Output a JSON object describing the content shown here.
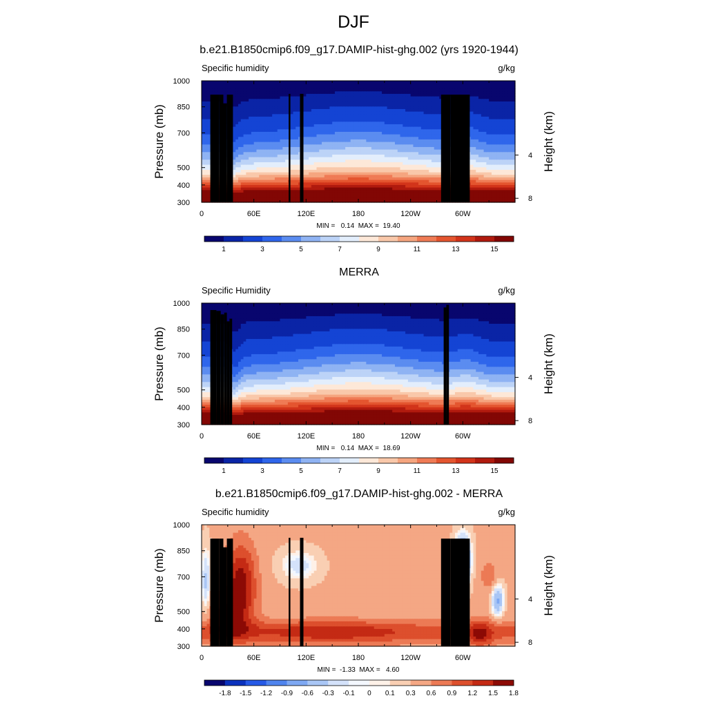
{
  "figure": {
    "title": "DJF"
  },
  "chart_data": [
    {
      "type": "heatmap",
      "title": "b.e21.B1850cmip6.f09_g17.DAMIP-hist-ghg.002 (yrs 1920-1944)",
      "left_label": "Specific humidity",
      "right_label": "g/kg",
      "ylabel": "Pressure (mb)",
      "ylabel_right": "Height (km)",
      "x_ticks": [
        "0",
        "60E",
        "120E",
        "180",
        "120W",
        "60W"
      ],
      "y_ticks": [
        "300",
        "400",
        "500",
        "700",
        "850",
        "1000"
      ],
      "y_right_ticks": [
        "8",
        "4"
      ],
      "stats": "MIN =   0.14  MAX =  19.40",
      "colorbar_labels": [
        "1",
        "3",
        "5",
        "7",
        "9",
        "11",
        "13",
        "15"
      ],
      "colorbar_levels": [
        0.5,
        1,
        2,
        3,
        4,
        5,
        6,
        7,
        8,
        9,
        10,
        11,
        12,
        13,
        14,
        15
      ],
      "min": 0.14,
      "max": 19.4,
      "xlim": [
        0,
        360
      ],
      "ylim": [
        1000,
        300
      ]
    },
    {
      "type": "heatmap",
      "title": "MERRA",
      "left_label": "Specific Humidity",
      "right_label": "g/kg",
      "ylabel": "Pressure (mb)",
      "ylabel_right": "Height (km)",
      "x_ticks": [
        "0",
        "60E",
        "120E",
        "180",
        "120W",
        "60W"
      ],
      "y_ticks": [
        "300",
        "400",
        "500",
        "700",
        "850",
        "1000"
      ],
      "y_right_ticks": [
        "8",
        "4"
      ],
      "stats": "MIN =   0.14  MAX =  18.69",
      "colorbar_labels": [
        "1",
        "3",
        "5",
        "7",
        "9",
        "11",
        "13",
        "15"
      ],
      "colorbar_levels": [
        0.5,
        1,
        2,
        3,
        4,
        5,
        6,
        7,
        8,
        9,
        10,
        11,
        12,
        13,
        14,
        15
      ],
      "min": 0.14,
      "max": 18.69,
      "xlim": [
        0,
        360
      ],
      "ylim": [
        1000,
        300
      ]
    },
    {
      "type": "heatmap",
      "title": "b.e21.B1850cmip6.f09_g17.DAMIP-hist-ghg.002 - MERRA",
      "left_label": "Specific humidity",
      "right_label": "g/kg",
      "ylabel": "Pressure (mb)",
      "ylabel_right": "Height (km)",
      "x_ticks": [
        "0",
        "60E",
        "120E",
        "180",
        "120W",
        "60W"
      ],
      "y_ticks": [
        "300",
        "400",
        "500",
        "700",
        "850",
        "1000"
      ],
      "y_right_ticks": [
        "8",
        "4"
      ],
      "stats": "MIN =  -1.33  MAX =   4.60",
      "colorbar_labels": [
        "-1.8",
        "-1.5",
        "-1.2",
        "-0.9",
        "-0.6",
        "-0.3",
        "-0.1",
        "0",
        "0.1",
        "0.3",
        "0.6",
        "0.9",
        "1.2",
        "1.5",
        "1.8"
      ],
      "colorbar_levels": [
        -1.8,
        -1.5,
        -1.2,
        -0.9,
        -0.6,
        -0.3,
        -0.1,
        0,
        0.1,
        0.3,
        0.6,
        0.9,
        1.2,
        1.5,
        1.8
      ],
      "min": -1.33,
      "max": 4.6,
      "xlim": [
        0,
        360
      ],
      "ylim": [
        1000,
        300
      ]
    }
  ]
}
